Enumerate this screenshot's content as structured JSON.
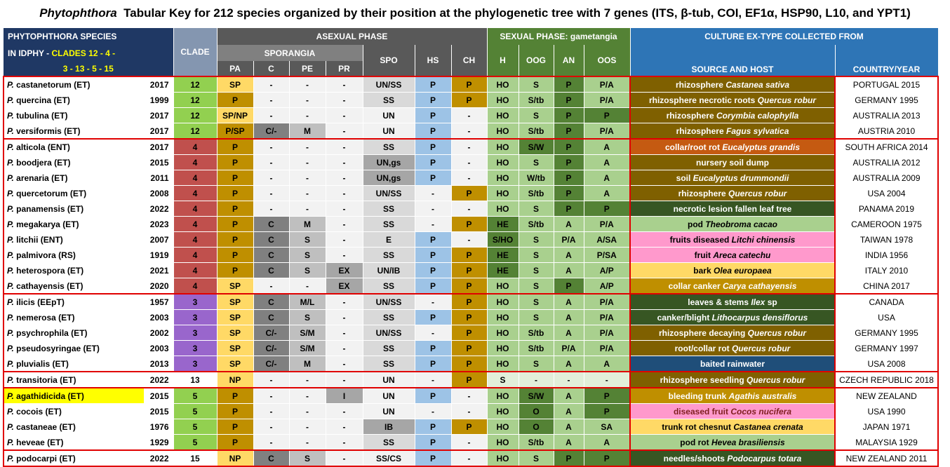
{
  "title": {
    "genus": "Phytophthora",
    "rest": "Tabular Key for 212 species organized by their position at the phylogenetic tree with 7 genes (ITS, β-tub, COI, EF1α, HSP90, L10, and YPT1)"
  },
  "header": {
    "species_line1": "PHYTOPHTHORA  SPECIES",
    "species_line2a": "IN IDPHY - ",
    "species_line2b": "CLADES 12 - 4 -",
    "species_line3": "3 - 13 - 5 - 15",
    "clade": "CLADE",
    "asexual": "ASEXUAL PHASE",
    "sporangia": "SPORANGIA",
    "sexual": "SEXUAL PHASE: gametangia",
    "culture": "CULTURE EX-TYPE COLLECTED FROM",
    "cols": [
      "PA",
      "C",
      "PE",
      "PR",
      "SPO",
      "HS",
      "CH",
      "H",
      "OOG",
      "AN",
      "OOS"
    ],
    "source": "SOURCE AND HOST",
    "country": "COUNTRY/YEAR"
  },
  "rows": [
    {
      "genus": "P.",
      "sp": "castanetorum (ET)",
      "yr": "2017",
      "clade": "12",
      "pa": "SP",
      "c": "-",
      "pe": "-",
      "pr": "-",
      "spo": "UN/SS",
      "hs": "P",
      "ch": "P",
      "h": "HO",
      "oog": "S",
      "an": "P",
      "oos": "P/A",
      "src": "rhizosphere ",
      "host": "Castanea sativa",
      "ctry": "PORTUGAL 2015"
    },
    {
      "genus": "P.",
      "sp": "quercina (ET)",
      "yr": "1999",
      "clade": "12",
      "pa": "P",
      "c": "-",
      "pe": "-",
      "pr": "-",
      "spo": "SS",
      "hs": "P",
      "ch": "P",
      "h": "HO",
      "oog": "S/tb",
      "an": "P",
      "oos": "P/A",
      "src": "rhizosphere necrotic roots ",
      "host": "Quercus robur",
      "ctry": "GERMANY 1995"
    },
    {
      "genus": "P.",
      "sp": "tubulina (ET)",
      "yr": "2017",
      "clade": "12",
      "pa": "SP/NP",
      "c": "-",
      "pe": "-",
      "pr": "-",
      "spo": "UN",
      "hs": "P",
      "ch": "-",
      "h": "HO",
      "oog": "S",
      "an": "P",
      "oos": "P",
      "src": "rhizosphere ",
      "host": "Corymbia calophylla",
      "ctry": "AUSTRALIA 2013"
    },
    {
      "genus": "P.",
      "sp": "versiformis (ET)",
      "yr": "2017",
      "clade": "12",
      "pa": "P/SP",
      "c": "C/-",
      "pe": "M",
      "pr": "-",
      "spo": "UN",
      "hs": "P",
      "ch": "-",
      "h": "HO",
      "oog": "S/tb",
      "an": "P",
      "oos": "P/A",
      "src": "rhizosphere ",
      "host": "Fagus sylvatica",
      "ctry": "AUSTRIA 2010"
    },
    {
      "genus": "P.",
      "sp": "alticola (ENT)",
      "yr": "2017",
      "clade": "4",
      "pa": "P",
      "c": "-",
      "pe": "-",
      "pr": "-",
      "spo": "SS",
      "hs": "P",
      "ch": "-",
      "h": "HO",
      "oog": "S/W",
      "an": "P",
      "oos": "A",
      "src": "collar/root rot ",
      "host": "Eucalyptus grandis",
      "ctry": "SOUTH AFRICA 2014"
    },
    {
      "genus": "P.",
      "sp": "boodjera (ET)",
      "yr": "2015",
      "clade": "4",
      "pa": "P",
      "c": "-",
      "pe": "-",
      "pr": "-",
      "spo": "UN,gs",
      "hs": "P",
      "ch": "-",
      "h": "HO",
      "oog": "S",
      "an": "P",
      "oos": "A",
      "src": "nursery soil dump",
      "host": "",
      "ctry": "AUSTRALIA 2012"
    },
    {
      "genus": "P.",
      "sp": "arenaria (ET)",
      "yr": "2011",
      "clade": "4",
      "pa": "P",
      "c": "-",
      "pe": "-",
      "pr": "-",
      "spo": "UN,gs",
      "hs": "P",
      "ch": "-",
      "h": "HO",
      "oog": "W/tb",
      "an": "P",
      "oos": "A",
      "src": "soil ",
      "host": "Eucalyptus drummondii",
      "ctry": "AUSTRALIA 2009"
    },
    {
      "genus": "P.",
      "sp": "quercetorum (ET)",
      "yr": "2008",
      "clade": "4",
      "pa": "P",
      "c": "-",
      "pe": "-",
      "pr": "-",
      "spo": "UN/SS",
      "hs": "-",
      "ch": "P",
      "h": "HO",
      "oog": "S/tb",
      "an": "P",
      "oos": "A",
      "src": "rhizosphere ",
      "host": "Quercus robur",
      "ctry": "USA 2004"
    },
    {
      "genus": "P.",
      "sp": "panamensis (ET)",
      "yr": "2022",
      "clade": "4",
      "pa": "P",
      "c": "-",
      "pe": "-",
      "pr": "-",
      "spo": "SS",
      "hs": "-",
      "ch": "-",
      "h": "HO",
      "oog": "S",
      "an": "P",
      "oos": "P",
      "src": "necrotic lesion fallen leaf tree",
      "host": "",
      "ctry": "PANAMA 2019"
    },
    {
      "genus": "P.",
      "sp": "megakarya (ET)",
      "yr": "2023",
      "clade": "4",
      "pa": "P",
      "c": "C",
      "pe": "M",
      "pr": "-",
      "spo": "SS",
      "hs": "-",
      "ch": "P",
      "h": "HE",
      "oog": "S/tb",
      "an": "A",
      "oos": "P/A",
      "src": "pod ",
      "host": "Theobroma cacao",
      "ctry": "CAMEROON 1975"
    },
    {
      "genus": "P.",
      "sp": "litchii (ENT)",
      "yr": "2007",
      "clade": "4",
      "pa": "P",
      "c": "C",
      "pe": "S",
      "pr": "-",
      "spo": "E",
      "hs": "P",
      "ch": "-",
      "h": "S/HO",
      "oog": "S",
      "an": "P/A",
      "oos": "A/SA",
      "src": "fruits diseased ",
      "host": "Litchi chinensis",
      "ctry": "TAIWAN 1978"
    },
    {
      "genus": "P.",
      "sp": "palmivora (RS)",
      "yr": "1919",
      "clade": "4",
      "pa": "P",
      "c": "C",
      "pe": "S",
      "pr": "-",
      "spo": "SS",
      "hs": "P",
      "ch": "P",
      "h": "HE",
      "oog": "S",
      "an": "A",
      "oos": "P/SA",
      "src": "fruit ",
      "host": "Areca catechu",
      "ctry": "INDIA 1956"
    },
    {
      "genus": "P.",
      "sp": "heterospora (ET)",
      "yr": "2021",
      "clade": "4",
      "pa": "P",
      "c": "C",
      "pe": "S",
      "pr": "EX",
      "spo": "UN/IB",
      "hs": "P",
      "ch": "P",
      "h": "HE",
      "oog": "S",
      "an": "A",
      "oos": "A/P",
      "src": "bark ",
      "host": "Olea europaea",
      "ctry": "ITALY 2010"
    },
    {
      "genus": "P.",
      "sp": "cathayensis (ET)",
      "yr": "2020",
      "clade": "4",
      "pa": "SP",
      "c": "-",
      "pe": "-",
      "pr": "EX",
      "spo": "SS",
      "hs": "P",
      "ch": "P",
      "h": "HO",
      "oog": "S",
      "an": "P",
      "oos": "A/P",
      "src": "collar canker ",
      "host": "Carya cathayensis",
      "ctry": "CHINA 2017"
    },
    {
      "genus": "P.",
      "sp": "ilicis (EEpT)",
      "yr": "1957",
      "clade": "3",
      "pa": "SP",
      "c": "C",
      "pe": "M/L",
      "pr": "-",
      "spo": "UN/SS",
      "hs": "-",
      "ch": "P",
      "h": "HO",
      "oog": "S",
      "an": "A",
      "oos": "P/A",
      "src": "leaves & stems ",
      "host": "Ilex",
      "tail": " sp",
      "ctry": "CANADA"
    },
    {
      "genus": "P.",
      "sp": "nemerosa (ET)",
      "yr": "2003",
      "clade": "3",
      "pa": "SP",
      "c": "C",
      "pe": "S",
      "pr": "-",
      "spo": "SS",
      "hs": "P",
      "ch": "P",
      "h": "HO",
      "oog": "S",
      "an": "A",
      "oos": "P/A",
      "src": "canker/blight ",
      "host": "Lithocarpus densiflorus",
      "ctry": "USA"
    },
    {
      "genus": "P.",
      "sp": "psychrophila (ET)",
      "yr": "2002",
      "clade": "3",
      "pa": "SP",
      "c": "C/-",
      "pe": "S/M",
      "pr": "-",
      "spo": "UN/SS",
      "hs": "-",
      "ch": "P",
      "h": "HO",
      "oog": "S/tb",
      "an": "A",
      "oos": "P/A",
      "src": "rhizosphere decaying ",
      "host": "Quercus robur",
      "ctry": "GERMANY 1995"
    },
    {
      "genus": "P.",
      "sp": "pseudosyringae (ET)",
      "yr": "2003",
      "clade": "3",
      "pa": "SP",
      "c": "C/-",
      "pe": "S/M",
      "pr": "-",
      "spo": "SS",
      "hs": "P",
      "ch": "P",
      "h": "HO",
      "oog": "S/tb",
      "an": "P/A",
      "oos": "P/A",
      "src": "root/collar rot  ",
      "host": "Quercus robur",
      "ctry": "GERMANY 1997"
    },
    {
      "genus": "P.",
      "sp": "pluvialis (ET)",
      "yr": "2013",
      "clade": "3",
      "pa": "SP",
      "c": "C/-",
      "pe": "M",
      "pr": "-",
      "spo": "SS",
      "hs": "P",
      "ch": "P",
      "h": "HO",
      "oog": "S",
      "an": "A",
      "oos": "A",
      "src": "baited rainwater",
      "host": "",
      "ctry": "USA 2008"
    },
    {
      "genus": "P.",
      "sp": "transitoria (ET)",
      "yr": "2022",
      "clade": "13",
      "pa": "NP",
      "c": "-",
      "pe": "-",
      "pr": "-",
      "spo": "UN",
      "hs": "-",
      "ch": "P",
      "h": "S",
      "oog": "-",
      "an": "-",
      "oos": "-",
      "src": "rhizosphere seedling ",
      "host": "Quercus robur",
      "ctry": "CZECH REPUBLIC 2018"
    },
    {
      "genus": "P.",
      "sp": "agathidicida (ET)",
      "yr": "2015",
      "clade": "5",
      "pa": "P",
      "c": "-",
      "pe": "-",
      "pr": "I",
      "spo": "UN",
      "hs": "P",
      "ch": "-",
      "h": "HO",
      "oog": "S/W",
      "an": "A",
      "oos": "P",
      "src": "bleeding trunk ",
      "host": "Agathis australis",
      "ctry": "NEW ZEALAND"
    },
    {
      "genus": "P.",
      "sp": "cocois (ET)",
      "yr": "2015",
      "clade": "5",
      "pa": "P",
      "c": "-",
      "pe": "-",
      "pr": "-",
      "spo": "UN",
      "hs": "-",
      "ch": "-",
      "h": "HO",
      "oog": "O",
      "an": "A",
      "oos": "P",
      "src": "diseased fruit ",
      "host": "Cocos nucifera",
      "ctry": "USA 1990"
    },
    {
      "genus": "P.",
      "sp": "castaneae (ET)",
      "yr": "1976",
      "clade": "5",
      "pa": "P",
      "c": "-",
      "pe": "-",
      "pr": "-",
      "spo": "IB",
      "hs": "P",
      "ch": "P",
      "h": "HO",
      "oog": "O",
      "an": "A",
      "oos": "SA",
      "src": "trunk rot chesnut ",
      "host": "Castanea crenata",
      "ctry": "JAPAN 1971"
    },
    {
      "genus": "P.",
      "sp": "heveae (ET)",
      "yr": "1929",
      "clade": "5",
      "pa": "P",
      "c": "-",
      "pe": "-",
      "pr": "-",
      "spo": "SS",
      "hs": "P",
      "ch": "-",
      "h": "HO",
      "oog": "S/tb",
      "an": "A",
      "oos": "A",
      "src": "pod rot ",
      "host": "Hevea brasiliensis",
      "ctry": "MALAYSIA 1929"
    },
    {
      "genus": "P.",
      "sp": "podocarpi (ET)",
      "yr": "2022",
      "clade": "15",
      "pa": "NP",
      "c": "C",
      "pe": "S",
      "pr": "-",
      "spo": "SS/CS",
      "hs": "P",
      "ch": "-",
      "h": "HO",
      "oog": "S",
      "an": "P",
      "oos": "P",
      "src": "needles/shoots ",
      "host": "Podocarpus totara",
      "ctry": "NEW ZEALAND 2011"
    }
  ],
  "colors": {
    "green_clade": "#92d050",
    "red_clade": "#c0504d",
    "purple_clade": "#9966cc",
    "gold": "#bf8f00",
    "yellow": "#ffd966",
    "blue": "#9dc3e6",
    "dkgreen": "#548235",
    "ltgreen": "#a9d08e",
    "paler": "#e2efda",
    "brown": "#7f6000",
    "red_group": "#e00000"
  }
}
